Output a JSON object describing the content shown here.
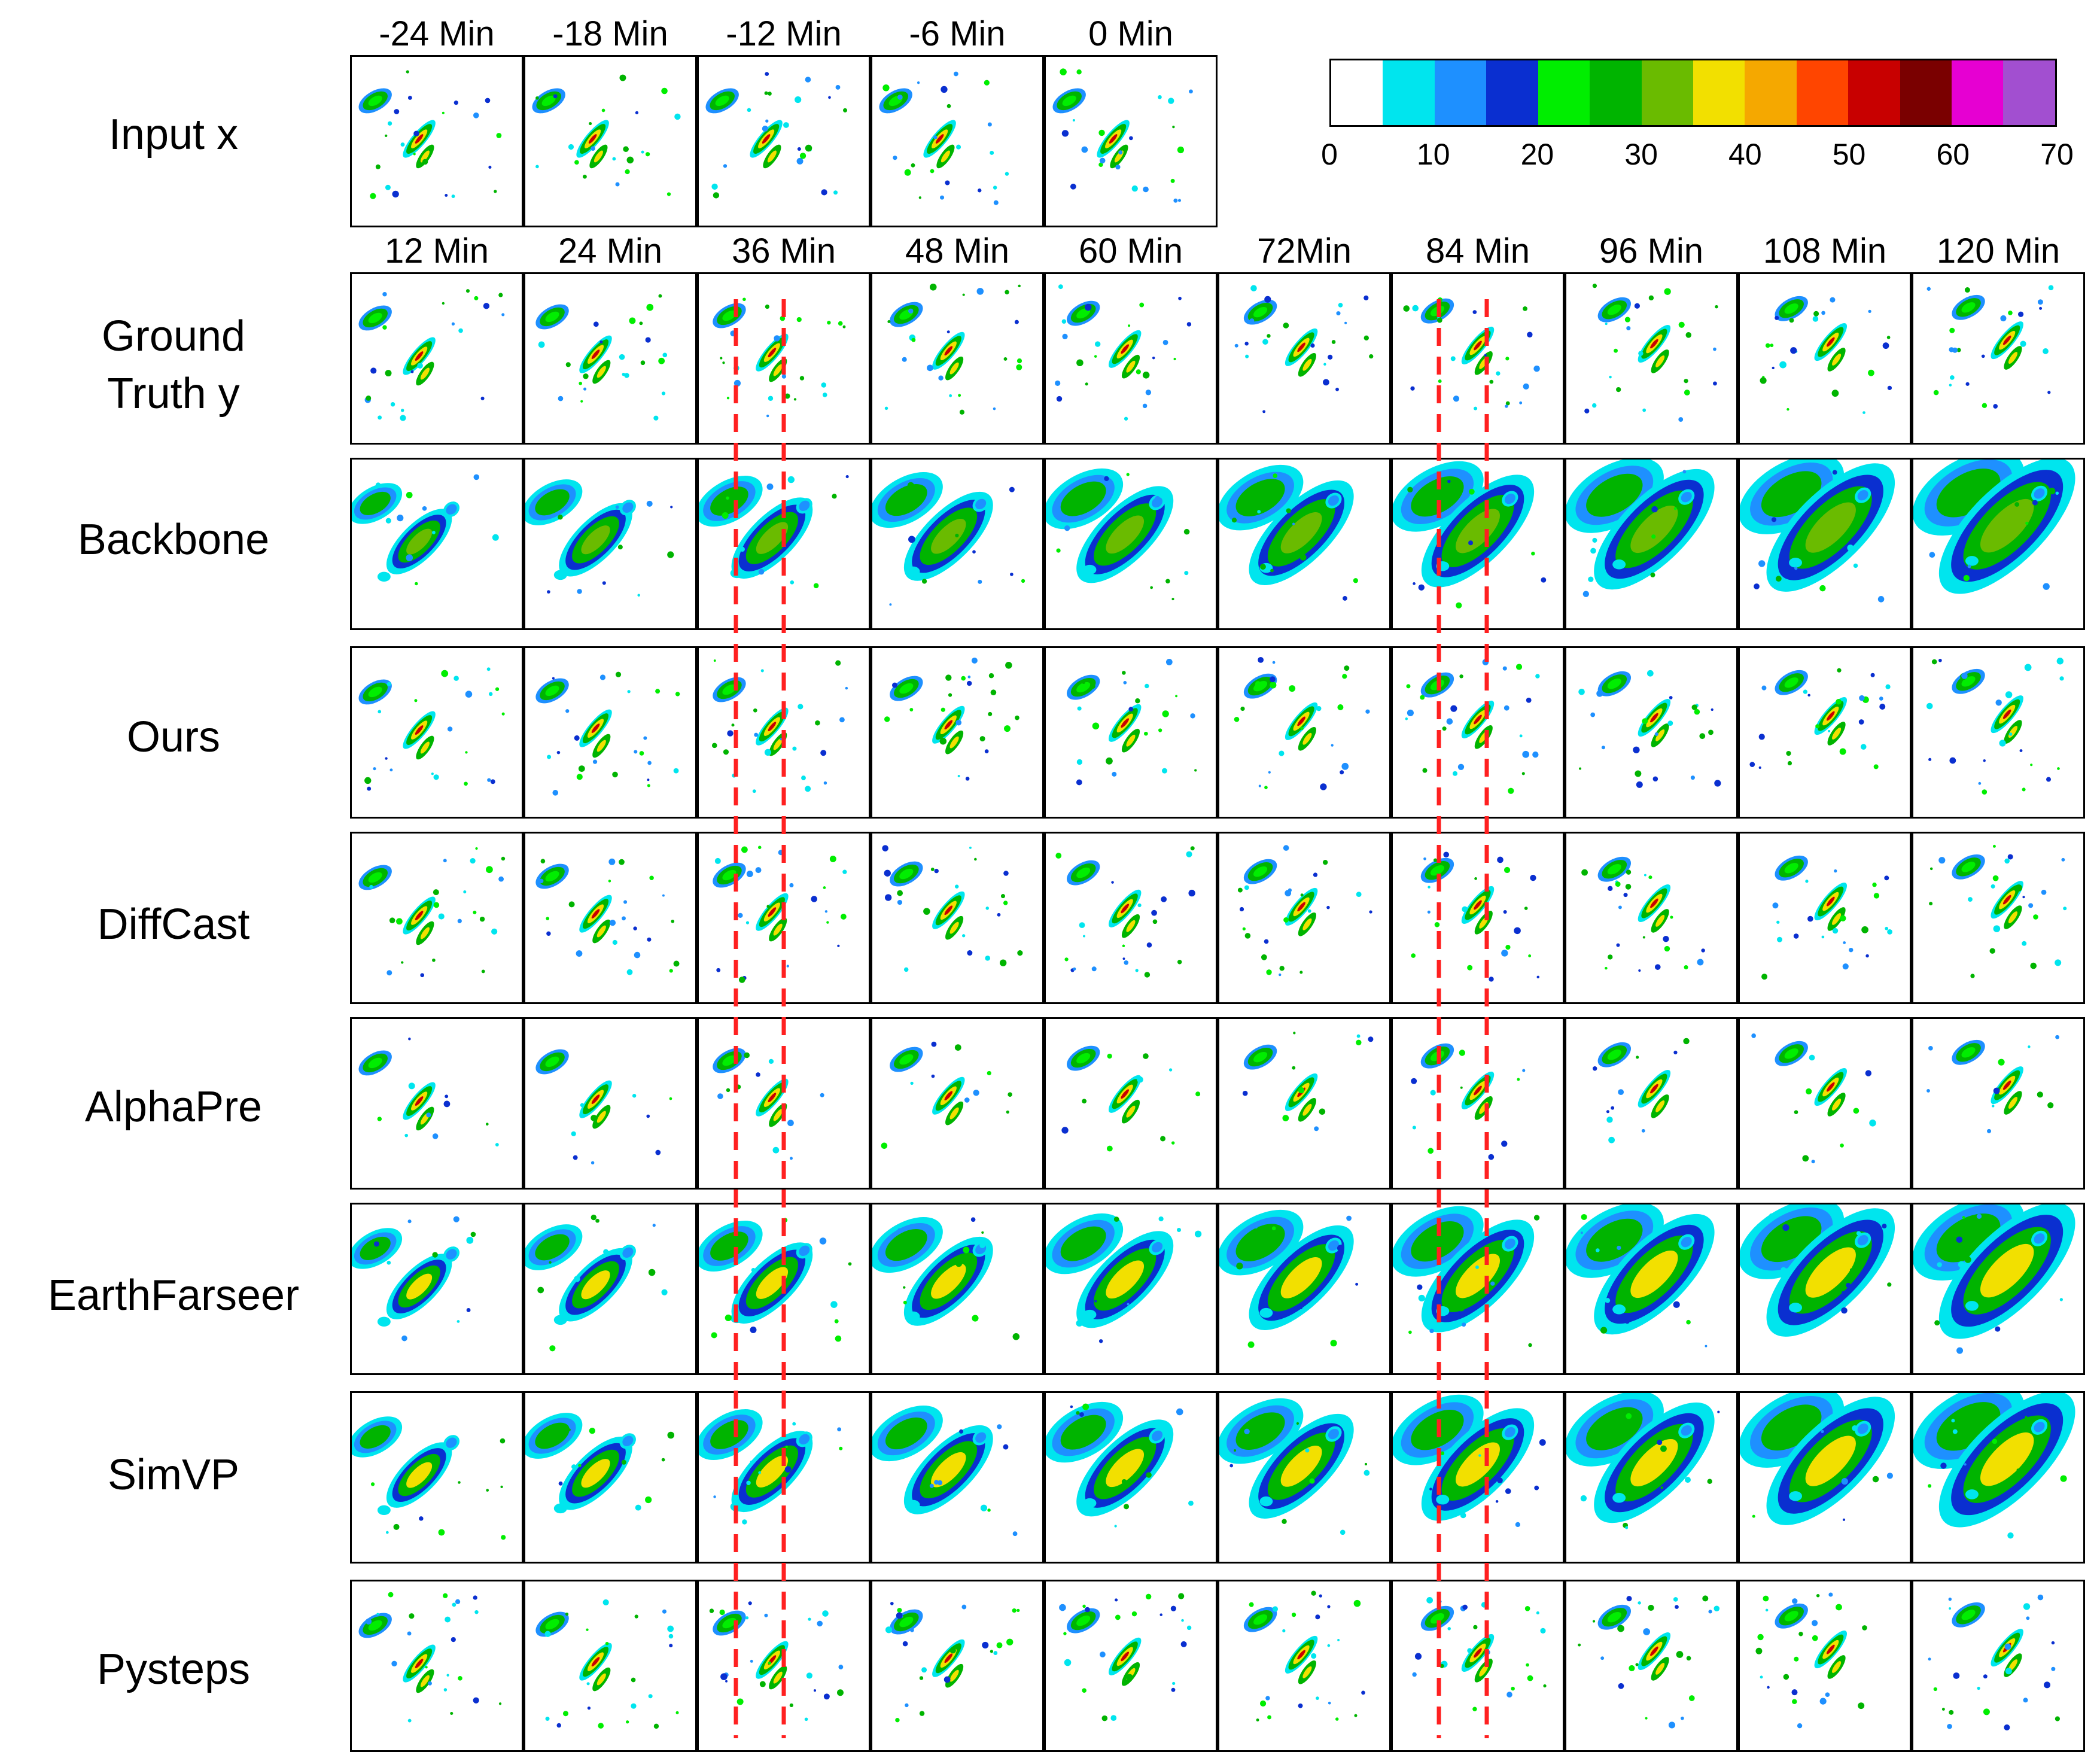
{
  "row_labels": [
    "Input x",
    "Ground\nTruth y",
    "Backbone",
    "Ours",
    "DiffCast",
    "AlphaPre",
    "EarthFarseer",
    "SimVP",
    "Pysteps"
  ],
  "input_times": [
    "-24 Min",
    "-18 Min",
    "-12 Min",
    "-6 Min",
    "0 Min"
  ],
  "output_times": [
    "12 Min",
    "24 Min",
    "36 Min",
    "48 Min",
    "60 Min",
    "72Min",
    "84 Min",
    "96 Min",
    "108 Min",
    "120 Min"
  ],
  "colorbar": {
    "colors": [
      "#ffffff",
      "#00e5ee",
      "#1e90ff",
      "#0a2fd0",
      "#00ee00",
      "#00b400",
      "#6abb00",
      "#f2e000",
      "#f5a800",
      "#ff4500",
      "#c80000",
      "#7a0000",
      "#e600d2",
      "#a24fd0"
    ],
    "tick_labels": [
      "0",
      "10",
      "20",
      "30",
      "40",
      "50",
      "60",
      "70"
    ]
  },
  "guide_color": "#ff2020"
}
